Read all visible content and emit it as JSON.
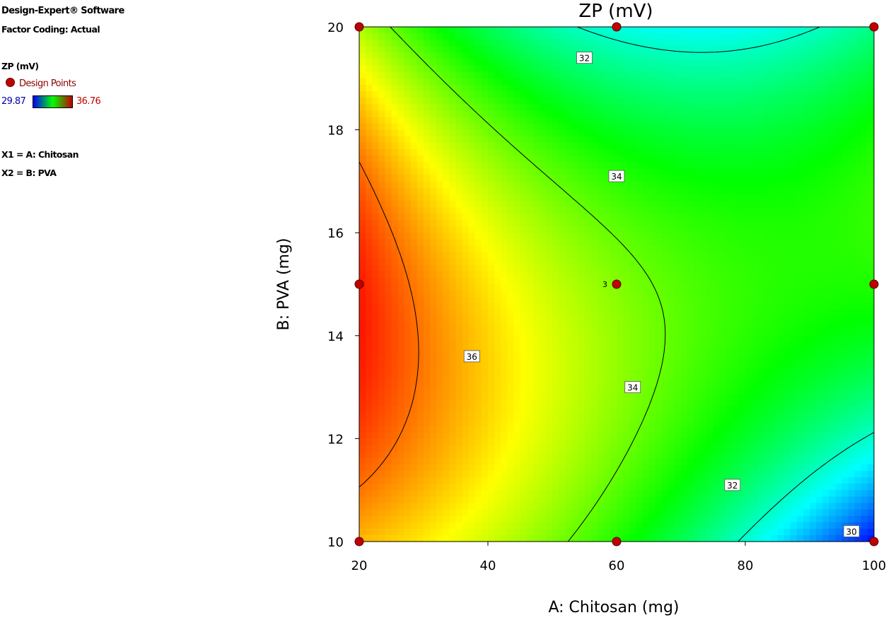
{
  "sidebar": {
    "software": "Design-Expert® Software",
    "coding": "Factor Coding: Actual",
    "response": "ZP (mV)",
    "design_points_label": "Design Points",
    "range_low": "29.87",
    "range_high": "36.76",
    "x1": "X1 = A: Chitosan",
    "x2": "X2 = B: PVA"
  },
  "chart_data": {
    "type": "heatmap",
    "subtype": "contour",
    "title": "ZP (mV)",
    "xlabel": "A: Chitosan  (mg)",
    "ylabel": "B: PVA (mg)",
    "xlim": [
      20,
      100
    ],
    "ylim": [
      10,
      20
    ],
    "xticks": [
      20,
      40,
      60,
      80,
      100
    ],
    "yticks": [
      10,
      12,
      14,
      16,
      18,
      20
    ],
    "color_range": [
      29.87,
      36.76
    ],
    "colorscale": [
      "#0000ff",
      "#00ffff",
      "#00ff00",
      "#ffff00",
      "#ff0000"
    ],
    "design_point_color": "#c00000",
    "grid_values": {
      "x": [
        20,
        60,
        100
      ],
      "y": [
        10,
        15,
        20
      ],
      "z": [
        [
          35.5,
          33.5,
          29.9
        ],
        [
          36.6,
          34.2,
          33.5
        ],
        [
          34.5,
          31.8,
          32.4
        ]
      ]
    },
    "contour_levels": [
      30,
      32,
      34,
      36
    ],
    "contour_labels": [
      {
        "text": "32",
        "x": 55,
        "y": 19.4
      },
      {
        "text": "34",
        "x": 60,
        "y": 17.1
      },
      {
        "text": "36",
        "x": 37.5,
        "y": 13.6
      },
      {
        "text": "34",
        "x": 62.5,
        "y": 13.0
      },
      {
        "text": "32",
        "x": 78,
        "y": 11.1
      },
      {
        "text": "30",
        "x": 96.5,
        "y": 10.2
      }
    ],
    "design_points": [
      {
        "x": 20,
        "y": 20
      },
      {
        "x": 60,
        "y": 20
      },
      {
        "x": 100,
        "y": 20
      },
      {
        "x": 20,
        "y": 15
      },
      {
        "x": 60,
        "y": 15,
        "count": "3"
      },
      {
        "x": 100,
        "y": 15
      },
      {
        "x": 20,
        "y": 10
      },
      {
        "x": 60,
        "y": 10
      },
      {
        "x": 100,
        "y": 10
      }
    ]
  }
}
